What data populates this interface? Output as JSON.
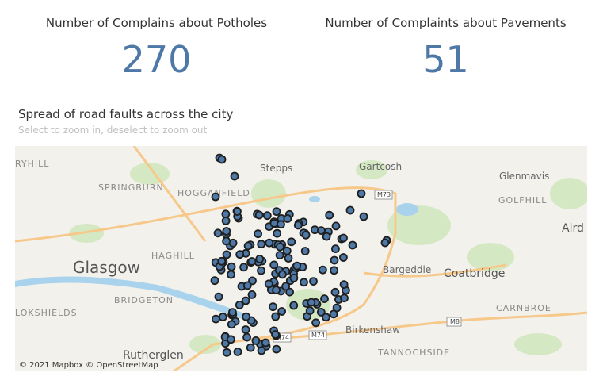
{
  "kpis": [
    {
      "title": "Number of Complains about Potholes",
      "value": 270
    },
    {
      "title": "Number of Complaints about Pavements",
      "value": 51
    }
  ],
  "map": {
    "title": "Spread of road faults across the city",
    "subtitle": "Select to zoom in, deselect to zoom out",
    "labels": {
      "ryhill": "RYHILL",
      "springburn": "SPRINGBURN",
      "hogganfield": "HOGGANFIELD",
      "stepps": "Stepps",
      "gartcosh": "Gartcosh",
      "glenmavis": "Glenmavis",
      "golfhill": "GOLFHILL",
      "airdrie": "Aird",
      "glasgow": "Glasgow",
      "haghill": "HAGHILL",
      "bargeddie": "Bargeddie",
      "coatbridge": "Coatbridge",
      "lokshields": "LOKSHIELDS",
      "bridgeton": "BRIDGETON",
      "carnbroe": "CARNBROE",
      "birkenshaw": "Birkenshaw",
      "tannochside": "TANNOCHSIDE",
      "rutherglen": "Rutherglen",
      "m73": "M73",
      "m74a": "M74",
      "m74b": "M74",
      "m8": "M8"
    },
    "attribution": "© 2021 Mapbox © OpenStreetMap"
  }
}
